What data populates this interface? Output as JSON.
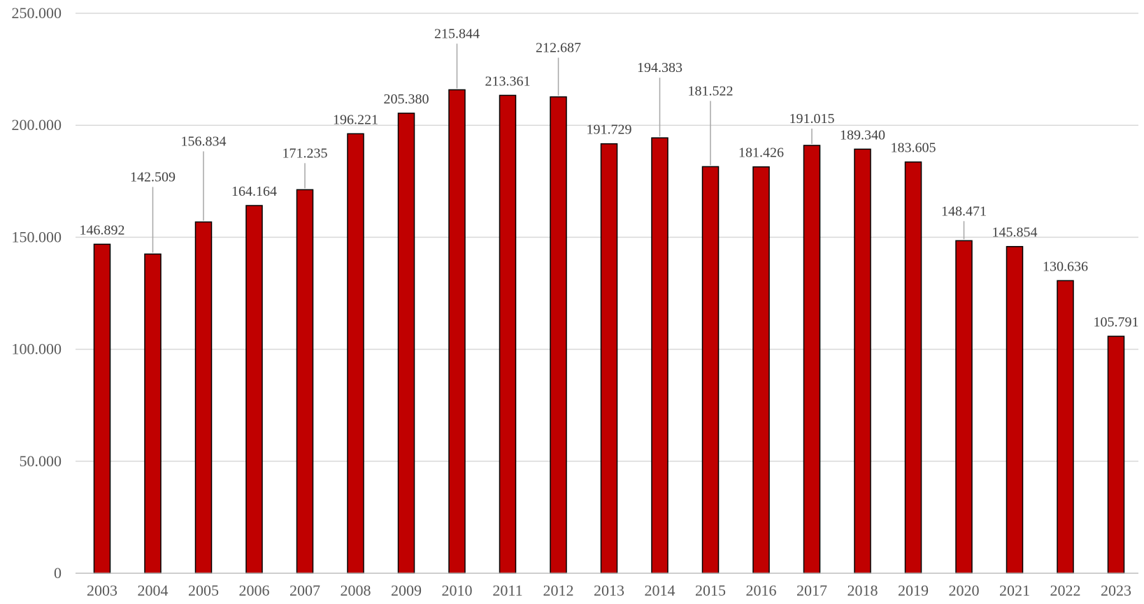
{
  "chart_data": {
    "type": "bar",
    "title": "",
    "xlabel": "",
    "ylabel": "",
    "categories": [
      "2003",
      "2004",
      "2005",
      "2006",
      "2007",
      "2008",
      "2009",
      "2010",
      "2011",
      "2012",
      "2013",
      "2014",
      "2015",
      "2016",
      "2017",
      "2018",
      "2019",
      "2020",
      "2021",
      "2022",
      "2023"
    ],
    "values": [
      146892,
      142509,
      156834,
      164164,
      171235,
      196221,
      205380,
      215844,
      213361,
      212687,
      191729,
      194383,
      181522,
      181426,
      191015,
      189340,
      183605,
      148471,
      145854,
      130636,
      105791
    ],
    "value_labels": [
      "146.892",
      "142.509",
      "156.834",
      "164.164",
      "171.235",
      "196.221",
      "205.380",
      "215.844",
      "213.361",
      "212.687",
      "191.729",
      "194.383",
      "181.522",
      "181.426",
      "191.015",
      "189.340",
      "183.605",
      "148.471",
      "145.854",
      "130.636",
      "105.791"
    ],
    "ylim": [
      0,
      250000
    ],
    "y_ticks": [
      0,
      50000,
      100000,
      150000,
      200000,
      250000
    ],
    "y_tick_labels": [
      "0",
      "50.000",
      "100.000",
      "150.000",
      "200.000",
      "250.000"
    ],
    "grid": true,
    "legend": "none",
    "bar_color": "#c00000",
    "bar_edge_color": "#000000"
  }
}
